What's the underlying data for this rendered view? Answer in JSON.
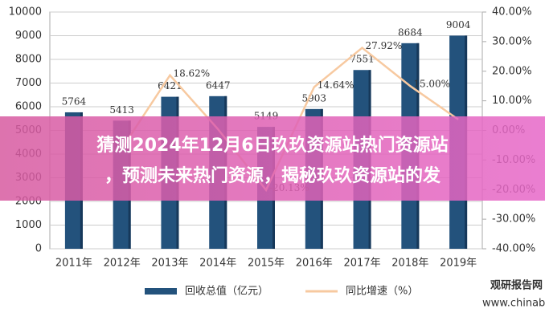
{
  "chart_data": {
    "type": "bar-line",
    "categories": [
      "2011年",
      "2012年",
      "2013年",
      "2014年",
      "2015年",
      "2016年",
      "2017年",
      "2018年",
      "2019年"
    ],
    "series": [
      {
        "name": "回收总值（亿元）",
        "type": "bar",
        "color": "#23527c",
        "values": [
          5764,
          5413,
          6421,
          6447,
          5149,
          5903,
          7551,
          8684,
          9004
        ]
      },
      {
        "name": "同比增速（%）",
        "type": "line",
        "axis": "y2",
        "color": "#f7c9a0",
        "values": [
          null,
          -6.09,
          18.62,
          0.4,
          -20.13,
          14.64,
          27.92,
          15.0,
          3.69
        ],
        "value_labels": [
          null,
          null,
          "18.62%",
          null,
          "-20.13%",
          "14.64%",
          "27.92%",
          "15.00%",
          null
        ]
      }
    ],
    "ylim": [
      0,
      10000
    ],
    "yticks": [
      0,
      1000,
      2000,
      3000,
      4000,
      5000,
      6000,
      7000,
      8000,
      9000,
      10000
    ],
    "y2lim": [
      -40,
      40
    ],
    "y2ticks": [
      {
        "value": -40,
        "label": "-40.00%"
      },
      {
        "value": -30,
        "label": "-30.00%"
      },
      {
        "value": -20,
        "label": "-20.00%"
      },
      {
        "value": -10,
        "label": "-10.00%"
      },
      {
        "value": 0,
        "label": "0.00%"
      },
      {
        "value": 10,
        "label": "10.00%"
      },
      {
        "value": 20,
        "label": "20.00%"
      },
      {
        "value": 30,
        "label": "30.00%"
      },
      {
        "value": 40,
        "label": "40.00%"
      }
    ],
    "grid": true,
    "legend": "bottom"
  },
  "watermark": {
    "brand": "观研报告网",
    "url": "www.chinabaogao.com"
  },
  "banner": {
    "lines": [
      "猜测2024年12月6日玖玖资源站热门资源站",
      "，预测未来热门资源，揭秘玖玖资源站的发"
    ]
  }
}
